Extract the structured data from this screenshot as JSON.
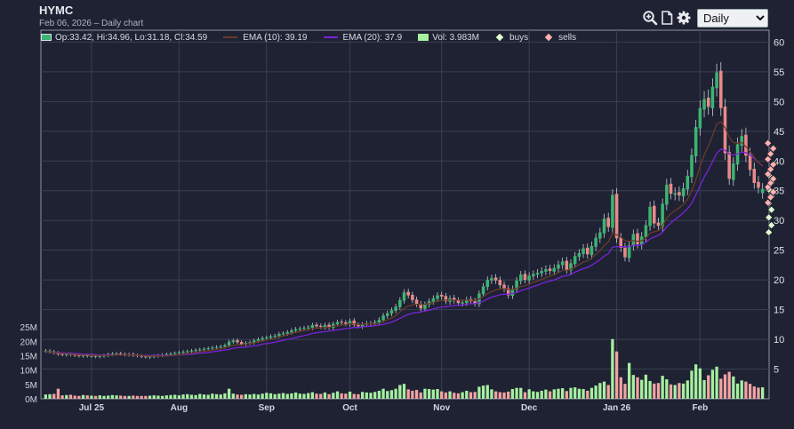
{
  "header": {
    "ticker": "HYMC",
    "subtitle": "Feb 06, 2026 – Daily chart"
  },
  "toolbar": {
    "icons": [
      "zoom-in-icon",
      "document-icon",
      "gear-icon"
    ],
    "period_selected": "Daily",
    "period_options": [
      "Daily"
    ]
  },
  "legend": {
    "ohlc": "Op:33.42, Hi:34.96, Lo:31.18, Cl:34.59",
    "ema10": "EMA (10): 39.19",
    "ema20": "EMA (20): 37.9",
    "volume": "Vol: 3.983M",
    "buys": "buys",
    "sells": "sells"
  },
  "colors": {
    "background": "#1e2233",
    "up": "#3cb371",
    "down": "#e88a88",
    "ema10": "#6b3a2a",
    "ema20": "#7b22d8",
    "volume_up": "#a6f0a0",
    "volume_down": "#f2a3a3",
    "buys": "#dfffd0",
    "sells": "#ffb0b0",
    "grid": "#3a3f52"
  },
  "chart_data": {
    "type": "candlestick",
    "price_axis": {
      "range": [
        0,
        62
      ],
      "ticks": [
        "5",
        "10",
        "15",
        "20",
        "25",
        "30",
        "35",
        "40",
        "45",
        "50",
        "55",
        "60"
      ],
      "tick_values": [
        5,
        10,
        15,
        20,
        25,
        30,
        35,
        40,
        45,
        50,
        55,
        60
      ],
      "position": "right"
    },
    "volume_axis": {
      "range": [
        0,
        30000000
      ],
      "ticks": [
        "0M",
        "5M",
        "10M",
        "15M",
        "20M",
        "25M"
      ],
      "tick_values": [
        0,
        5000000,
        10000000,
        15000000,
        20000000,
        25000000
      ],
      "position": "left"
    },
    "x_axis": {
      "labels": [
        "Jul 25",
        "Aug",
        "Sep",
        "Oct",
        "Nov",
        "Dec",
        "Jan 26",
        "Feb"
      ],
      "label_index": [
        11,
        32,
        53,
        73,
        95,
        116,
        137,
        157
      ]
    },
    "close": [
      8.1,
      7.9,
      7.7,
      7.5,
      7.4,
      7.5,
      7.4,
      7.3,
      7.2,
      7.3,
      7.2,
      7.2,
      7.1,
      7.2,
      7.3,
      7.5,
      7.6,
      7.6,
      7.5,
      7.4,
      7.5,
      7.3,
      7.2,
      7.1,
      7.0,
      7.1,
      7.2,
      7.3,
      7.4,
      7.5,
      7.6,
      7.7,
      7.8,
      7.9,
      8.0,
      8.1,
      8.2,
      8.3,
      8.4,
      8.5,
      8.6,
      8.7,
      8.8,
      9.0,
      9.6,
      9.8,
      9.5,
      9.2,
      9.4,
      9.5,
      9.8,
      10.0,
      10.2,
      10.3,
      10.5,
      10.6,
      10.9,
      11.0,
      11.2,
      11.5,
      11.7,
      11.8,
      11.9,
      12.0,
      12.4,
      12.2,
      12.1,
      12.4,
      12.0,
      12.6,
      12.9,
      12.8,
      12.6,
      13.1,
      12.4,
      12.2,
      12.5,
      12.7,
      12.7,
      12.9,
      13.3,
      14.0,
      14.4,
      14.9,
      15.5,
      16.6,
      17.9,
      17.4,
      16.6,
      15.9,
      15.2,
      15.9,
      16.4,
      16.9,
      17.4,
      17.2,
      16.4,
      16.9,
      16.5,
      16.1,
      16.2,
      16.7,
      16.4,
      16.0,
      17.7,
      18.9,
      20.0,
      20.3,
      19.9,
      19.1,
      18.5,
      17.4,
      18.5,
      19.9,
      20.9,
      20.0,
      20.7,
      21.0,
      21.2,
      21.5,
      21.8,
      21.5,
      22.0,
      22.6,
      23.1,
      21.7,
      22.8,
      24.0,
      24.5,
      25.3,
      24.3,
      25.7,
      27.1,
      28.0,
      30.3,
      28.9,
      34.3,
      27.0,
      25.4,
      23.8,
      25.8,
      27.7,
      26.0,
      27.3,
      29.2,
      32.3,
      29.5,
      29.1,
      32.8,
      36.0,
      34.5,
      34.6,
      34.2,
      35.4,
      37.5,
      41.0,
      45.7,
      48.9,
      50.4,
      49.1,
      52.5,
      54.9,
      48.9,
      41.3,
      37.0,
      39.6,
      42.8,
      44.2,
      40.9,
      38.5,
      36.3,
      35.5,
      34.6
    ],
    "up": [
      true,
      true,
      false,
      false,
      false,
      true,
      false,
      false,
      false,
      true,
      false,
      true,
      false,
      true,
      true,
      true,
      true,
      true,
      false,
      false,
      true,
      false,
      false,
      false,
      false,
      true,
      true,
      true,
      true,
      true,
      true,
      true,
      true,
      true,
      true,
      true,
      true,
      true,
      true,
      true,
      true,
      true,
      true,
      true,
      true,
      true,
      false,
      false,
      true,
      true,
      true,
      true,
      true,
      true,
      true,
      true,
      true,
      true,
      true,
      true,
      true,
      true,
      true,
      true,
      true,
      false,
      false,
      true,
      false,
      true,
      true,
      false,
      false,
      true,
      false,
      false,
      true,
      true,
      true,
      true,
      true,
      true,
      true,
      true,
      true,
      true,
      true,
      false,
      false,
      false,
      false,
      true,
      true,
      true,
      true,
      false,
      false,
      true,
      false,
      false,
      true,
      true,
      false,
      false,
      true,
      true,
      true,
      true,
      false,
      false,
      false,
      false,
      true,
      true,
      true,
      false,
      true,
      true,
      true,
      true,
      true,
      false,
      true,
      true,
      true,
      false,
      true,
      true,
      true,
      true,
      false,
      true,
      true,
      true,
      true,
      false,
      true,
      false,
      false,
      false,
      true,
      true,
      false,
      true,
      true,
      true,
      false,
      false,
      true,
      true,
      false,
      true,
      false,
      true,
      true,
      true,
      true,
      true,
      true,
      false,
      true,
      true,
      false,
      false,
      false,
      true,
      true,
      true,
      false,
      false,
      false,
      false,
      true
    ],
    "ema10": [
      8.0,
      7.9,
      7.8,
      7.7,
      7.6,
      7.6,
      7.5,
      7.5,
      7.4,
      7.4,
      7.4,
      7.3,
      7.3,
      7.3,
      7.3,
      7.3,
      7.3,
      7.4,
      7.4,
      7.4,
      7.4,
      7.4,
      7.3,
      7.3,
      7.2,
      7.2,
      7.2,
      7.2,
      7.2,
      7.2,
      7.3,
      7.4,
      7.4,
      7.5,
      7.6,
      7.7,
      7.8,
      7.9,
      8.0,
      8.1,
      8.2,
      8.3,
      8.4,
      8.6,
      8.8,
      9.0,
      9.1,
      9.1,
      9.2,
      9.3,
      9.4,
      9.6,
      9.7,
      9.9,
      10.0,
      10.2,
      10.4,
      10.6,
      10.8,
      11.0,
      11.2,
      11.3,
      11.5,
      11.6,
      11.8,
      11.9,
      11.9,
      12.0,
      12.0,
      12.2,
      12.3,
      12.4,
      12.5,
      12.6,
      12.6,
      12.5,
      12.5,
      12.6,
      12.6,
      12.6,
      12.7,
      13.0,
      13.3,
      13.6,
      14.0,
      14.6,
      15.2,
      15.6,
      15.8,
      15.9,
      15.9,
      15.9,
      16.0,
      16.2,
      16.4,
      16.6,
      16.6,
      16.6,
      16.6,
      16.6,
      16.6,
      16.6,
      16.6,
      16.5,
      16.8,
      17.2,
      17.7,
      18.0,
      18.3,
      18.5,
      18.5,
      18.4,
      18.4,
      18.6,
      18.9,
      19.0,
      19.3,
      19.6,
      19.8,
      20.1,
      20.4,
      20.6,
      20.9,
      21.2,
      21.6,
      21.6,
      21.8,
      22.2,
      22.6,
      23.0,
      23.2,
      23.7,
      24.3,
      24.9,
      25.8,
      26.4,
      27.8,
      27.6,
      27.2,
      26.6,
      26.5,
      26.6,
      26.5,
      26.6,
      27.0,
      27.9,
      28.1,
      28.3,
      29.1,
      30.4,
      31.1,
      31.7,
      32.1,
      32.7,
      33.6,
      35.0,
      36.9,
      39.1,
      41.0,
      42.5,
      44.3,
      46.2,
      46.6,
      45.6,
      44.0,
      43.1,
      43.0,
      43.1,
      42.4,
      41.6,
      40.6,
      39.7,
      39.2
    ],
    "ema20": [
      7.9,
      7.9,
      7.8,
      7.8,
      7.7,
      7.7,
      7.7,
      7.6,
      7.6,
      7.5,
      7.5,
      7.5,
      7.4,
      7.4,
      7.4,
      7.4,
      7.4,
      7.4,
      7.4,
      7.4,
      7.4,
      7.4,
      7.3,
      7.3,
      7.3,
      7.3,
      7.3,
      7.3,
      7.3,
      7.3,
      7.3,
      7.3,
      7.4,
      7.4,
      7.5,
      7.5,
      7.6,
      7.7,
      7.7,
      7.8,
      7.9,
      8.0,
      8.1,
      8.2,
      8.3,
      8.5,
      8.6,
      8.6,
      8.7,
      8.8,
      8.9,
      9.0,
      9.2,
      9.3,
      9.4,
      9.5,
      9.7,
      9.8,
      10.0,
      10.1,
      10.3,
      10.5,
      10.6,
      10.8,
      11.0,
      11.1,
      11.2,
      11.3,
      11.4,
      11.5,
      11.6,
      11.7,
      11.8,
      11.9,
      12.0,
      12.0,
      12.1,
      12.2,
      12.2,
      12.3,
      12.4,
      12.5,
      12.7,
      12.9,
      13.2,
      13.5,
      13.9,
      14.2,
      14.4,
      14.5,
      14.6,
      14.8,
      14.9,
      15.1,
      15.3,
      15.4,
      15.5,
      15.6,
      15.7,
      15.7,
      15.8,
      15.9,
      16.0,
      16.0,
      16.2,
      16.4,
      16.8,
      17.1,
      17.3,
      17.5,
      17.6,
      17.6,
      17.7,
      17.9,
      18.2,
      18.4,
      18.6,
      18.9,
      19.1,
      19.4,
      19.6,
      19.8,
      20.0,
      20.3,
      20.6,
      20.7,
      20.9,
      21.3,
      21.6,
      21.9,
      22.1,
      22.5,
      22.9,
      23.4,
      24.0,
      24.4,
      25.5,
      25.6,
      25.6,
      25.5,
      25.6,
      25.8,
      25.8,
      25.9,
      26.3,
      26.9,
      27.2,
      27.5,
      28.0,
      28.9,
      29.6,
      30.2,
      30.7,
      31.3,
      32.0,
      32.9,
      34.3,
      35.8,
      37.3,
      38.5,
      39.9,
      41.3,
      42.0,
      41.8,
      41.2,
      41.0,
      41.2,
      41.5,
      41.4,
      41.0,
      40.4,
      39.8,
      39.1
    ],
    "volume_millions": [
      1.5,
      1.6,
      1.7,
      3.5,
      1.2,
      1.3,
      1.4,
      1.1,
      1.0,
      1.3,
      1.2,
      1.1,
      1.0,
      1.2,
      1.0,
      1.1,
      1.3,
      1.2,
      1.1,
      1.0,
      1.0,
      1.1,
      1.0,
      1.0,
      1.0,
      1.1,
      1.2,
      1.1,
      1.0,
      1.2,
      1.3,
      1.4,
      1.2,
      1.5,
      1.6,
      1.4,
      1.3,
      1.7,
      1.5,
      1.4,
      1.8,
      1.6,
      1.5,
      1.9,
      3.5,
      1.8,
      1.5,
      1.4,
      1.6,
      1.5,
      1.7,
      1.5,
      1.8,
      2.1,
      1.9,
      1.6,
      1.8,
      2.0,
      1.7,
      1.9,
      2.2,
      1.8,
      1.7,
      2.0,
      2.3,
      1.8,
      1.7,
      2.2,
      1.6,
      2.1,
      2.6,
      1.9,
      1.8,
      2.5,
      1.7,
      1.6,
      2.4,
      2.2,
      2.1,
      2.4,
      2.8,
      3.5,
      2.7,
      3.0,
      3.5,
      4.8,
      5.2,
      3.3,
      2.8,
      3.1,
      2.2,
      3.5,
      3.4,
      3.2,
      3.4,
      2.6,
      2.2,
      2.6,
      2.1,
      1.9,
      2.3,
      2.8,
      2.3,
      2.4,
      4.2,
      4.6,
      4.8,
      3.3,
      2.6,
      2.3,
      2.2,
      2.5,
      3.4,
      3.8,
      3.8,
      2.3,
      3.3,
      2.6,
      2.4,
      2.8,
      3.2,
      2.6,
      3.3,
      3.5,
      3.7,
      2.7,
      3.8,
      4.0,
      3.5,
      3.4,
      2.8,
      3.8,
      4.6,
      5.5,
      6.0,
      4.8,
      20.8,
      16.5,
      7.5,
      5.2,
      12.5,
      8.3,
      7.5,
      6.6,
      8.4,
      6.2,
      5.3,
      5.5,
      8.0,
      6.8,
      5.0,
      4.8,
      5.5,
      5.3,
      6.4,
      9.8,
      12.0,
      10.6,
      6.5,
      8.2,
      10.1,
      11.2,
      7.0,
      8.5,
      9.4,
      7.8,
      5.3,
      6.4,
      6.0,
      5.2,
      4.3,
      3.9,
      4.0
    ],
    "buys": [
      28.0,
      29.2,
      30.5,
      31.8,
      32.9,
      34.0,
      35.2,
      36.4,
      37.6
    ],
    "sells": [
      33.0,
      33.9,
      34.8,
      35.6,
      36.3,
      37.0,
      37.8,
      38.6,
      39.4,
      40.3,
      41.2,
      42.1,
      43.0
    ]
  }
}
